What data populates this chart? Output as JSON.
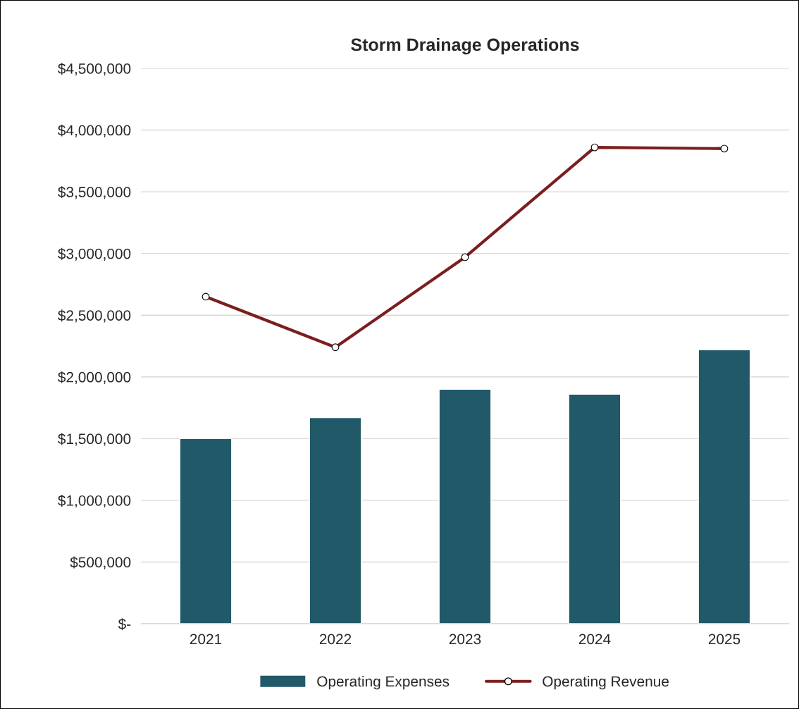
{
  "chart_data": {
    "type": "bar",
    "title": "Storm Drainage Operations",
    "categories": [
      "2021",
      "2022",
      "2023",
      "2024",
      "2025"
    ],
    "series": [
      {
        "name": "Operating Expenses",
        "color": "#215968",
        "values": [
          1500000,
          1670000,
          1900000,
          1860000,
          2220000
        ]
      },
      {
        "name": "Operating Revenue",
        "type": "line",
        "color": "#7b1e1e",
        "marker": "circle",
        "values": [
          2650000,
          2240000,
          2970000,
          3860000,
          3850000
        ]
      }
    ],
    "ylim": [
      0,
      4500000
    ],
    "yticks": [
      {
        "value": 0,
        "label": "$-"
      },
      {
        "value": 500000,
        "label": "$500,000"
      },
      {
        "value": 1000000,
        "label": "$1,000,000"
      },
      {
        "value": 1500000,
        "label": "$1,500,000"
      },
      {
        "value": 2000000,
        "label": "$2,000,000"
      },
      {
        "value": 2500000,
        "label": "$2,500,000"
      },
      {
        "value": 3000000,
        "label": "$3,000,000"
      },
      {
        "value": 3500000,
        "label": "$3,500,000"
      },
      {
        "value": 4000000,
        "label": "$4,000,000"
      },
      {
        "value": 4500000,
        "label": "$4,500,000"
      }
    ],
    "grid": "y",
    "legend": "bottom"
  }
}
